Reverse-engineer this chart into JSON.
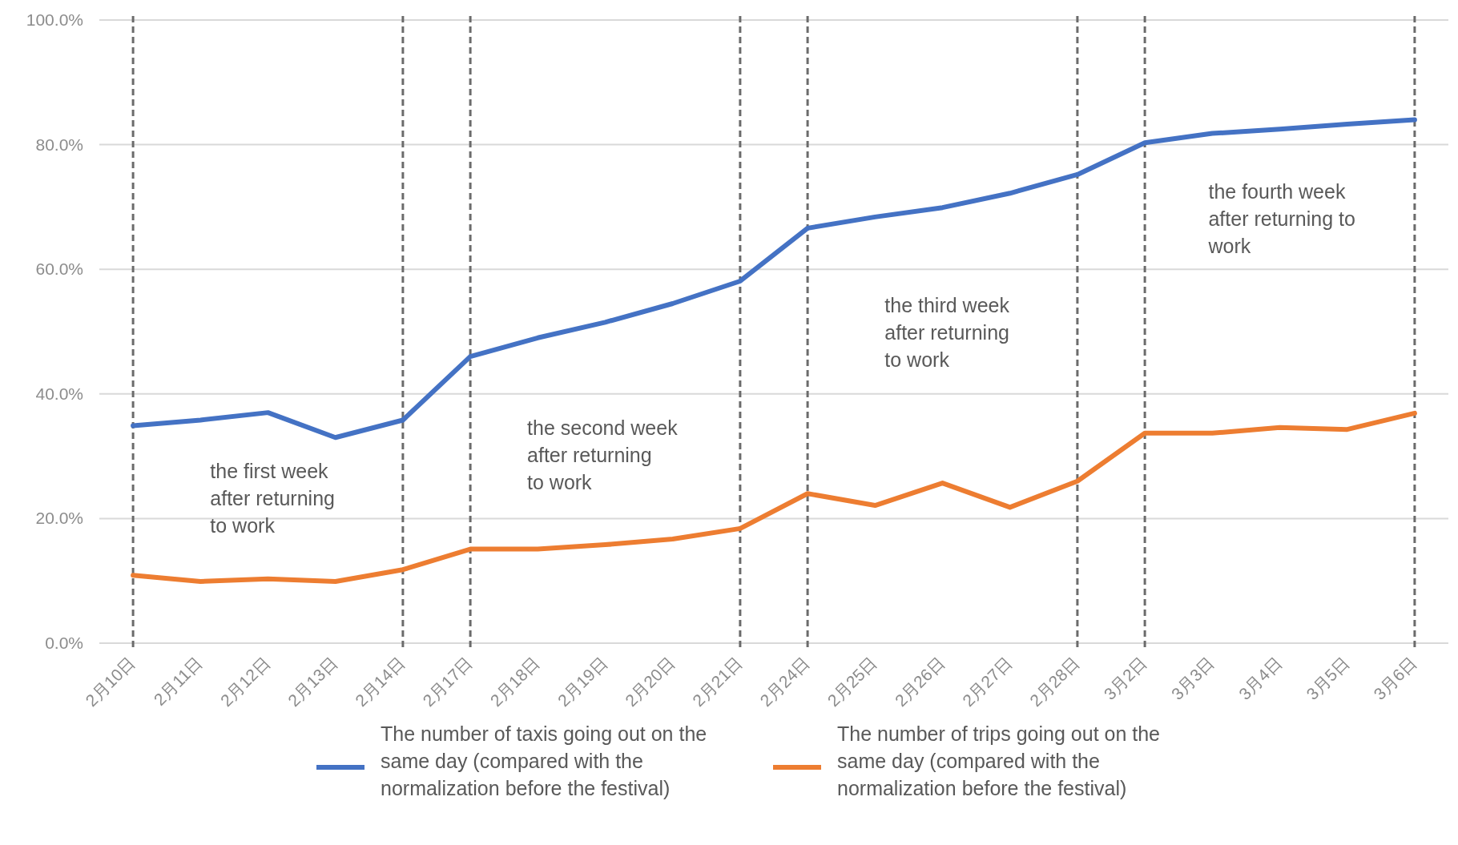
{
  "chart_data": {
    "type": "line",
    "categories": [
      "2月10日",
      "2月11日",
      "2月12日",
      "2月13日",
      "2月14日",
      "2月17日",
      "2月18日",
      "2月19日",
      "2月20日",
      "2月21日",
      "2月24日",
      "2月25日",
      "2月26日",
      "2月27日",
      "2月28日",
      "3月2日",
      "3月3日",
      "3月4日",
      "3月5日",
      "3月6日"
    ],
    "series": [
      {
        "name": "The number of taxis going out on the same day (compared with the normalization before the festival)",
        "color": "#4472c4",
        "values": [
          34.9,
          35.8,
          37.0,
          33.0,
          35.8,
          46.0,
          49.0,
          51.5,
          54.5,
          58.1,
          66.6,
          68.4,
          69.9,
          72.2,
          75.2,
          80.3,
          81.8,
          82.5,
          83.3,
          84.0
        ]
      },
      {
        "name": "The number of trips going out on the same day (compared with the normalization before the festival)",
        "color": "#ed7d31",
        "values": [
          10.9,
          9.9,
          10.3,
          9.9,
          11.8,
          15.1,
          15.1,
          15.8,
          16.7,
          18.4,
          24.0,
          22.1,
          25.7,
          21.8,
          26.0,
          33.7,
          33.7,
          34.6,
          34.3,
          36.9
        ]
      }
    ],
    "ylim": [
      0,
      100
    ],
    "yticks": [
      {
        "value": 0,
        "label": "0.0%"
      },
      {
        "value": 20,
        "label": "20.0%"
      },
      {
        "value": 40,
        "label": "40.0%"
      },
      {
        "value": 60,
        "label": "60.0%"
      },
      {
        "value": 80,
        "label": "80.0%"
      },
      {
        "value": 100,
        "label": "100.0%"
      }
    ],
    "grid": "y",
    "legend": "bottom",
    "marker": "none",
    "line_style": "solid",
    "ref_lines": [
      {
        "axis": "x",
        "value": "2月10日",
        "color": "#6b6b6b",
        "line_style": "dashed"
      },
      {
        "axis": "x",
        "value": "2月14日",
        "color": "#6b6b6b",
        "line_style": "dashed"
      },
      {
        "axis": "x",
        "value": "2月17日",
        "color": "#6b6b6b",
        "line_style": "dashed"
      },
      {
        "axis": "x",
        "value": "2月21日",
        "color": "#6b6b6b",
        "line_style": "dashed"
      },
      {
        "axis": "x",
        "value": "2月24日",
        "color": "#6b6b6b",
        "line_style": "dashed"
      },
      {
        "axis": "x",
        "value": "2月28日",
        "color": "#6b6b6b",
        "line_style": "dashed"
      },
      {
        "axis": "x",
        "value": "3月2日",
        "color": "#6b6b6b",
        "line_style": "dashed"
      },
      {
        "axis": "x",
        "value": "3月6日",
        "color": "#6b6b6b",
        "line_style": "dashed"
      }
    ],
    "annotations": [
      "the first week after returning to work",
      "the second week after returning to work",
      "the third week after returning to work",
      "the fourth week after returning to work"
    ]
  }
}
